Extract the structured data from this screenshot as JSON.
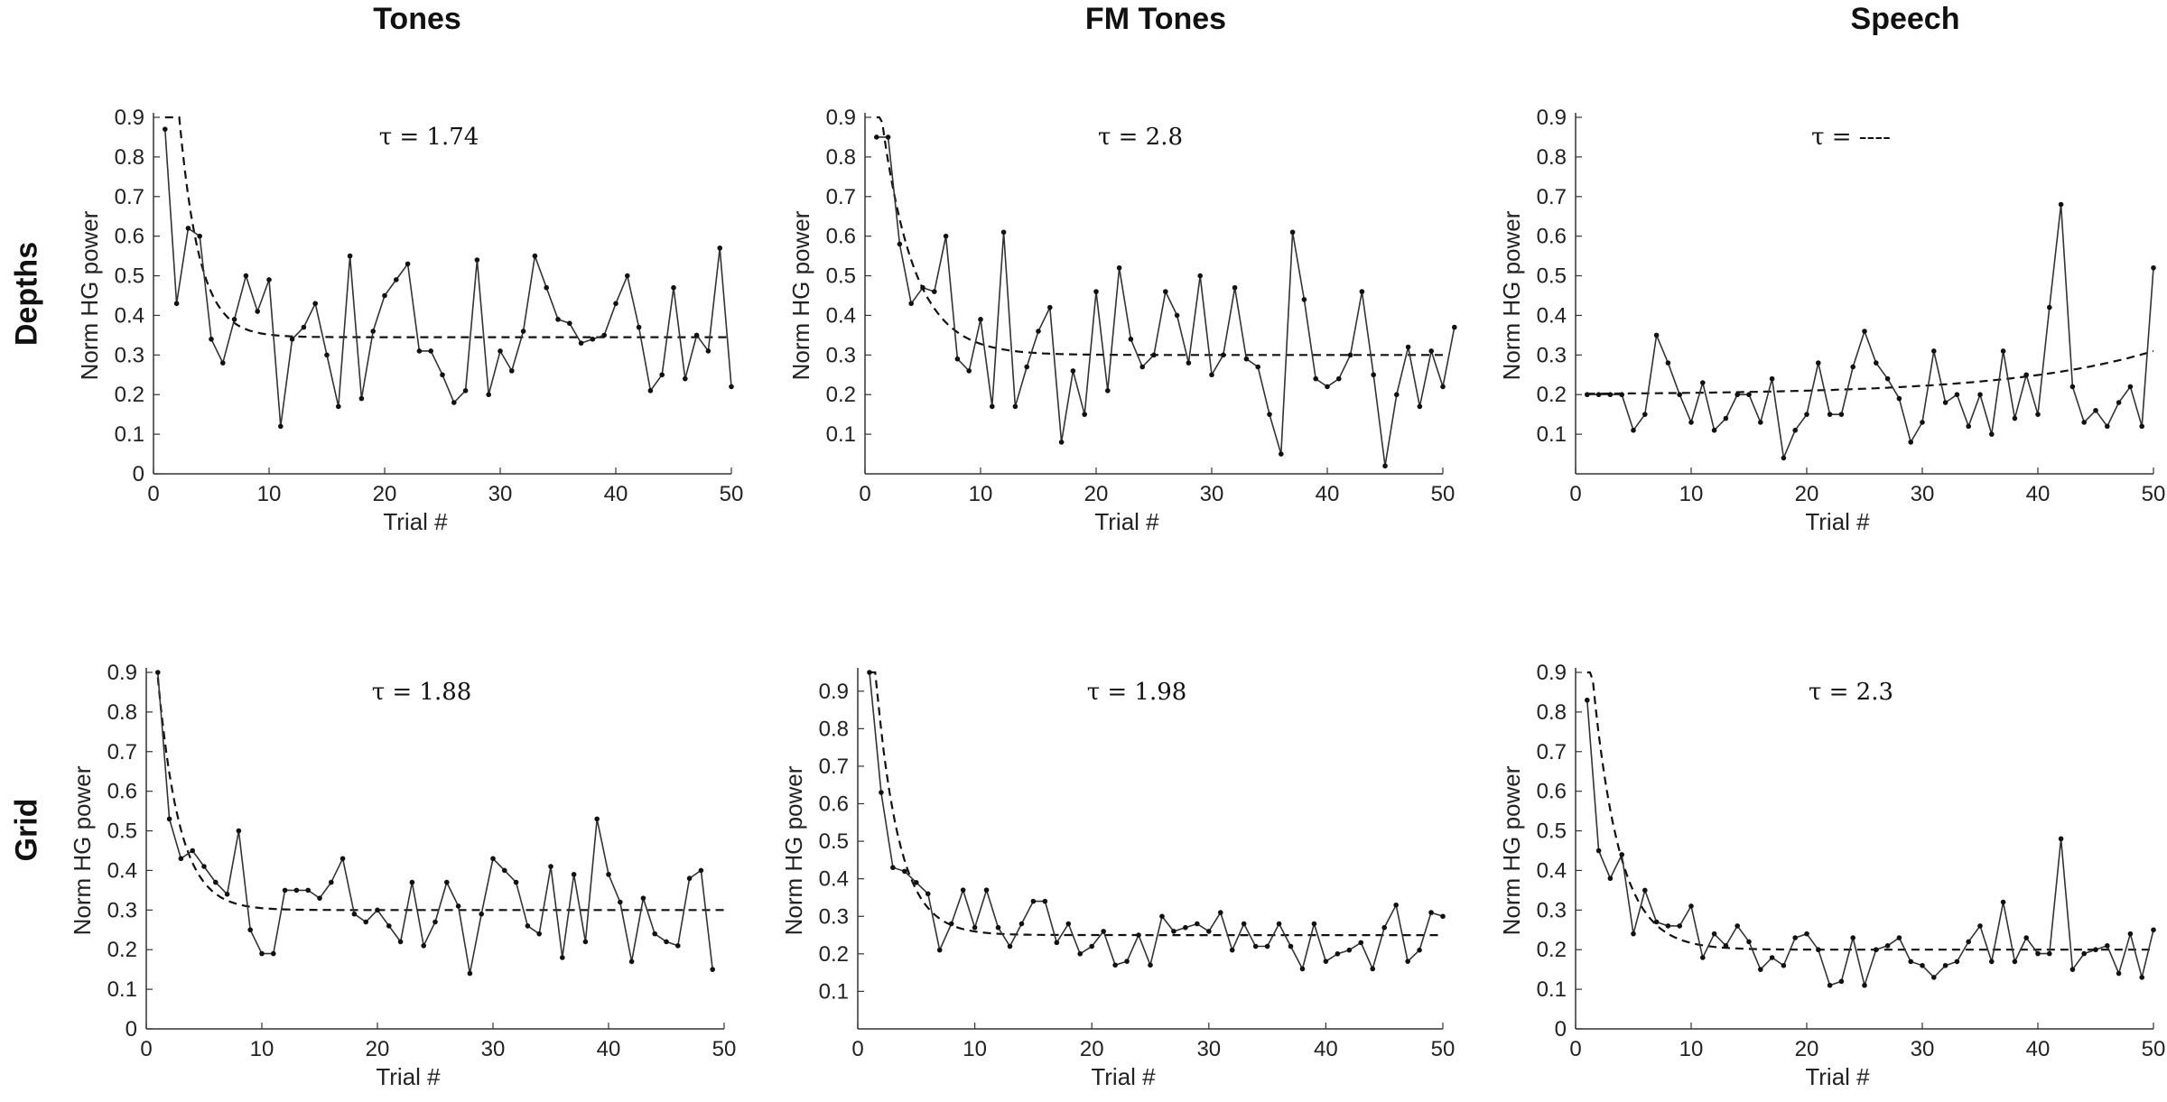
{
  "figure": {
    "column_titles": [
      "Tones",
      "FM Tones",
      "Speech"
    ],
    "row_titles": [
      "Depths",
      "Grid"
    ]
  },
  "chart_data": [
    {
      "type": "line",
      "panel": "Depths / Tones",
      "xlabel": "Trial #",
      "ylabel": "Norm HG power",
      "annotation": "τ = 1.74",
      "xlim": [
        0,
        50
      ],
      "ylim": [
        0,
        0.9
      ],
      "xticks": [
        0,
        10,
        20,
        30,
        40,
        50
      ],
      "yticks": [
        0,
        0.1,
        0.2,
        0.3,
        0.4,
        0.5,
        0.6,
        0.7,
        0.8,
        0.9
      ],
      "fit": {
        "a": 2.0,
        "tau": 1.74,
        "c": 0.345
      },
      "y": [
        0.87,
        0.43,
        0.62,
        0.6,
        0.34,
        0.28,
        0.39,
        0.5,
        0.41,
        0.49,
        0.12,
        0.34,
        0.37,
        0.43,
        0.3,
        0.17,
        0.55,
        0.19,
        0.36,
        0.45,
        0.49,
        0.53,
        0.31,
        0.31,
        0.25,
        0.18,
        0.21,
        0.54,
        0.2,
        0.31,
        0.26,
        0.36,
        0.55,
        0.47,
        0.39,
        0.38,
        0.33,
        0.34,
        0.35,
        0.43,
        0.5,
        0.37,
        0.21,
        0.25,
        0.47,
        0.24,
        0.35,
        0.31,
        0.57,
        0.22
      ]
    },
    {
      "type": "line",
      "panel": "Depths / FM Tones",
      "xlabel": "Trial #",
      "ylabel": "Norm HG power",
      "annotation": "τ = 2.8",
      "xlim": [
        0,
        50
      ],
      "ylim": [
        0,
        0.9
      ],
      "xticks": [
        0,
        10,
        20,
        30,
        40,
        50
      ],
      "yticks": [
        0.1,
        0.2,
        0.3,
        0.4,
        0.5,
        0.6,
        0.7,
        0.8,
        0.9
      ],
      "fit": {
        "a": 1.0,
        "tau": 2.8,
        "c": 0.3
      },
      "y": [
        0.85,
        0.85,
        0.58,
        0.43,
        0.47,
        0.46,
        0.6,
        0.29,
        0.26,
        0.39,
        0.17,
        0.61,
        0.17,
        0.27,
        0.36,
        0.42,
        0.08,
        0.26,
        0.15,
        0.46,
        0.21,
        0.52,
        0.34,
        0.27,
        0.3,
        0.46,
        0.4,
        0.28,
        0.5,
        0.25,
        0.3,
        0.47,
        0.29,
        0.27,
        0.15,
        0.05,
        0.61,
        0.44,
        0.24,
        0.22,
        0.24,
        0.3,
        0.46,
        0.25,
        0.02,
        0.2,
        0.32,
        0.17,
        0.31,
        0.22,
        0.37
      ]
    },
    {
      "type": "line",
      "panel": "Depths / Speech",
      "xlabel": "Trial #",
      "ylabel": "Norm HG power",
      "annotation": "τ = ----",
      "xlim": [
        0,
        50
      ],
      "ylim": [
        0,
        0.9
      ],
      "xticks": [
        0,
        10,
        20,
        30,
        40,
        50
      ],
      "yticks": [
        0.1,
        0.2,
        0.3,
        0.4,
        0.5,
        0.6,
        0.7,
        0.8,
        0.9
      ],
      "fit_rising": {
        "base": 0.2,
        "amp": 0.11,
        "scale": 0.08
      },
      "y": [
        0.2,
        0.2,
        0.2,
        0.2,
        0.11,
        0.15,
        0.35,
        0.28,
        0.2,
        0.13,
        0.23,
        0.11,
        0.14,
        0.2,
        0.2,
        0.13,
        0.24,
        0.04,
        0.11,
        0.15,
        0.28,
        0.15,
        0.15,
        0.27,
        0.36,
        0.28,
        0.24,
        0.19,
        0.08,
        0.13,
        0.31,
        0.18,
        0.2,
        0.12,
        0.2,
        0.1,
        0.31,
        0.14,
        0.25,
        0.15,
        0.42,
        0.68,
        0.22,
        0.13,
        0.16,
        0.12,
        0.18,
        0.22,
        0.12,
        0.52
      ]
    },
    {
      "type": "line",
      "panel": "Grid / Tones",
      "xlabel": "Trial #",
      "ylabel": "Norm HG power",
      "annotation": "τ = 1.88",
      "xlim": [
        0,
        50
      ],
      "ylim": [
        0,
        0.9
      ],
      "xticks": [
        0,
        10,
        20,
        30,
        40,
        50
      ],
      "yticks": [
        0,
        0.1,
        0.2,
        0.3,
        0.4,
        0.5,
        0.6,
        0.7,
        0.8,
        0.9
      ],
      "fit": {
        "a": 1.0,
        "tau": 1.88,
        "c": 0.3
      },
      "y": [
        0.9,
        0.53,
        0.43,
        0.45,
        0.41,
        0.37,
        0.34,
        0.5,
        0.25,
        0.19,
        0.19,
        0.35,
        0.35,
        0.35,
        0.33,
        0.37,
        0.43,
        0.29,
        0.27,
        0.3,
        0.26,
        0.22,
        0.37,
        0.21,
        0.27,
        0.37,
        0.31,
        0.14,
        0.29,
        0.43,
        0.4,
        0.37,
        0.26,
        0.24,
        0.41,
        0.18,
        0.39,
        0.22,
        0.53,
        0.39,
        0.32,
        0.17,
        0.33,
        0.24,
        0.22,
        0.21,
        0.38,
        0.4,
        0.15
      ]
    },
    {
      "type": "line",
      "panel": "Grid / FM Tones",
      "xlabel": "Trial #",
      "ylabel": "Norm HG power",
      "annotation": "τ = 1.98",
      "xlim": [
        0,
        50
      ],
      "ylim": [
        0,
        0.95
      ],
      "xticks": [
        0,
        10,
        20,
        30,
        40,
        50
      ],
      "yticks": [
        0.1,
        0.2,
        0.3,
        0.4,
        0.5,
        0.6,
        0.7,
        0.8,
        0.9
      ],
      "fit": {
        "a": 1.5,
        "tau": 1.98,
        "c": 0.25
      },
      "y": [
        0.95,
        0.63,
        0.43,
        0.42,
        0.39,
        0.36,
        0.21,
        0.28,
        0.37,
        0.27,
        0.37,
        0.27,
        0.22,
        0.28,
        0.34,
        0.34,
        0.23,
        0.28,
        0.2,
        0.22,
        0.26,
        0.17,
        0.18,
        0.25,
        0.17,
        0.3,
        0.26,
        0.27,
        0.28,
        0.26,
        0.31,
        0.21,
        0.28,
        0.22,
        0.22,
        0.28,
        0.22,
        0.16,
        0.28,
        0.18,
        0.2,
        0.21,
        0.23,
        0.16,
        0.27,
        0.33,
        0.18,
        0.21,
        0.31,
        0.3
      ]
    },
    {
      "type": "line",
      "panel": "Grid / Speech",
      "xlabel": "Trial #",
      "ylabel": "Norm HG power",
      "annotation": "τ = 2.3",
      "xlim": [
        0,
        50
      ],
      "ylim": [
        0,
        0.9
      ],
      "xticks": [
        0,
        10,
        20,
        30,
        40,
        50
      ],
      "yticks": [
        0,
        0.1,
        0.2,
        0.3,
        0.4,
        0.5,
        0.6,
        0.7,
        0.8,
        0.9
      ],
      "fit": {
        "a": 1.3,
        "tau": 2.3,
        "c": 0.2
      },
      "y": [
        0.83,
        0.45,
        0.38,
        0.44,
        0.24,
        0.35,
        0.27,
        0.26,
        0.26,
        0.31,
        0.18,
        0.24,
        0.21,
        0.26,
        0.22,
        0.15,
        0.18,
        0.16,
        0.23,
        0.24,
        0.2,
        0.11,
        0.12,
        0.23,
        0.11,
        0.2,
        0.21,
        0.23,
        0.17,
        0.16,
        0.13,
        0.16,
        0.17,
        0.22,
        0.26,
        0.17,
        0.32,
        0.17,
        0.23,
        0.19,
        0.19,
        0.48,
        0.15,
        0.19,
        0.2,
        0.21,
        0.14,
        0.24,
        0.13,
        0.25
      ]
    }
  ]
}
